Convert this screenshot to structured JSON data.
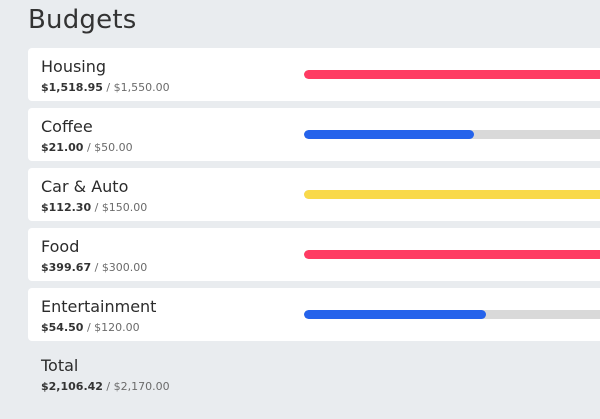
{
  "title": "Budgets",
  "budgets": [
    {
      "name": "Housing",
      "spent": "$1,518.95",
      "limit": "$1,550.00",
      "progress": 1.0,
      "color": "#ff3b63"
    },
    {
      "name": "Coffee",
      "spent": "$21.00",
      "limit": "$50.00",
      "progress": 0.53,
      "color": "#2563eb"
    },
    {
      "name": "Car & Auto",
      "spent": "$112.30",
      "limit": "$150.00",
      "progress": 1.0,
      "color": "#f9d94a"
    },
    {
      "name": "Food",
      "spent": "$399.67",
      "limit": "$300.00",
      "progress": 1.0,
      "color": "#ff3b63"
    },
    {
      "name": "Entertainment",
      "spent": "$54.50",
      "limit": "$120.00",
      "progress": 0.57,
      "color": "#2563eb"
    }
  ],
  "total": {
    "name": "Total",
    "spent": "$2,106.42",
    "limit": "$2,170.00"
  },
  "separator": " / "
}
